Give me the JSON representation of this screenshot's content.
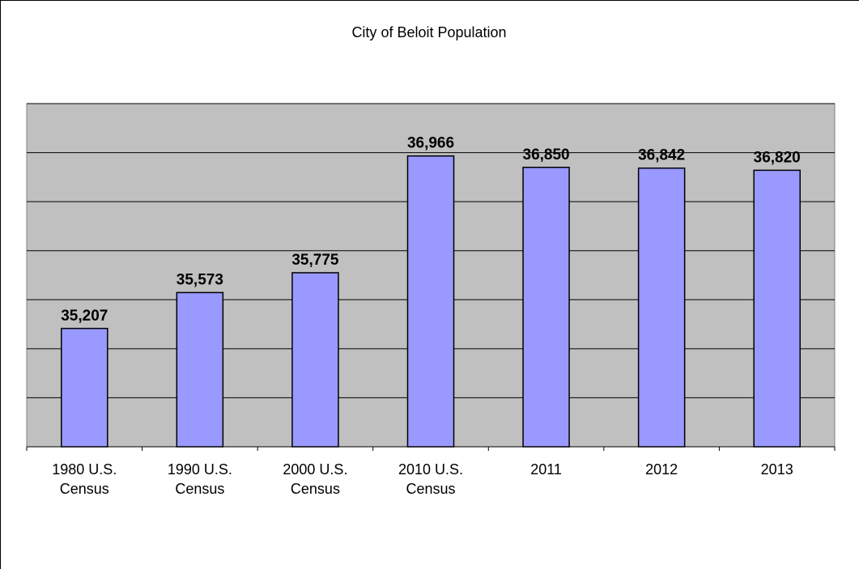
{
  "chart_data": {
    "type": "bar",
    "title": "City of Beloit Population",
    "categories": [
      "1980 U.S. Census",
      "1990 U.S. Census",
      "2000 U.S. Census",
      "2010 U.S. Census",
      "2011",
      "2012",
      "2013"
    ],
    "values": [
      35207,
      35573,
      35775,
      36966,
      36850,
      36842,
      36820
    ],
    "value_labels": [
      "35,207",
      "35,573",
      "35,775",
      "36,966",
      "36,850",
      "36,842",
      "36,820"
    ],
    "color": "#9999ff",
    "ylim": [
      34000,
      37500
    ],
    "yticks": [
      34000,
      34500,
      35000,
      35500,
      36000,
      36500,
      37000,
      37500
    ],
    "grid": true
  }
}
